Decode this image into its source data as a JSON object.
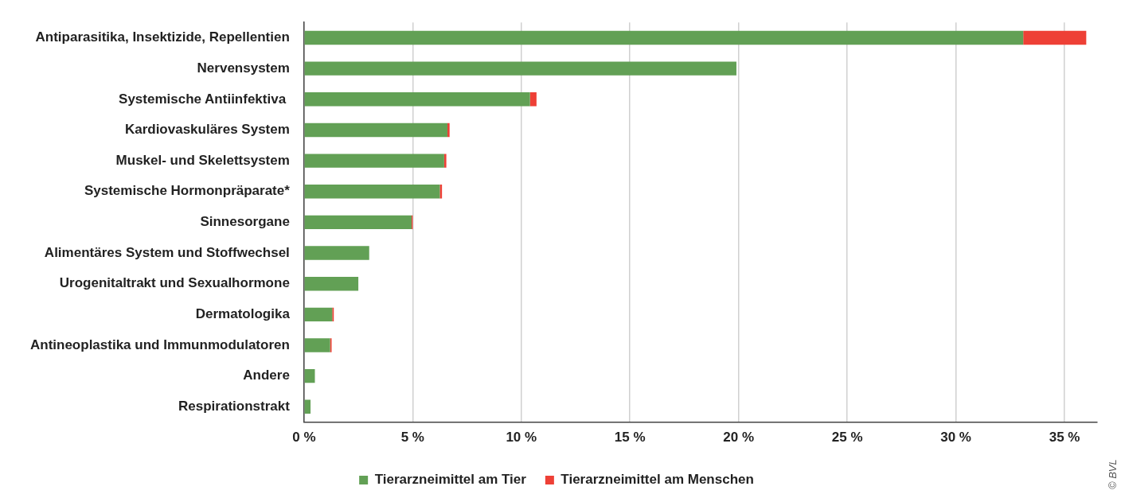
{
  "chart_data": {
    "type": "bar",
    "orientation": "horizontal",
    "stacked": true,
    "categories": [
      "Antiparasitika, Insektizide, Repellentien",
      "Nervensystem",
      "Systemische Antiinfektiva ",
      "Kardiovaskuläres System",
      "Muskel- und Skelettsystem",
      "Systemische Hormonpräparate*",
      "Sinnesorgane",
      "Alimentäres System und Stoffwechsel",
      "Urogenitaltrakt und Sexualhormone",
      "Dermatologika",
      "Antineoplastika und Immunmodulatoren",
      "Andere",
      "Respirationstrakt"
    ],
    "series": [
      {
        "name": "Tierarzneimittel am Tier",
        "color": "#62a055",
        "values": [
          33.1,
          19.9,
          10.4,
          6.6,
          6.45,
          6.25,
          4.95,
          3.0,
          2.5,
          1.3,
          1.2,
          0.5,
          0.3
        ]
      },
      {
        "name": "Tierarzneimittel am Menschen",
        "color": "#ee4036",
        "values": [
          2.9,
          0,
          0.3,
          0.1,
          0.1,
          0.1,
          0.05,
          0,
          0,
          0.07,
          0.07,
          0,
          0
        ]
      }
    ],
    "xlim": [
      0,
      36.5
    ],
    "xticks": [
      {
        "value": 0,
        "label": "0 %"
      },
      {
        "value": 5,
        "label": "5 %"
      },
      {
        "value": 10,
        "label": "10 %"
      },
      {
        "value": 15,
        "label": "15 %"
      },
      {
        "value": 20,
        "label": "20 %"
      },
      {
        "value": 25,
        "label": "25 %"
      },
      {
        "value": 30,
        "label": "30 %"
      },
      {
        "value": 35,
        "label": "35 %"
      }
    ],
    "grid": "x",
    "legend": "bottom",
    "annotations": [
      "© BVL"
    ]
  }
}
